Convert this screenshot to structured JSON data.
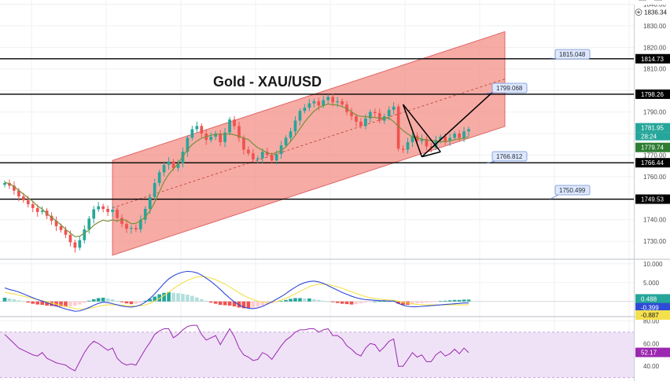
{
  "colors": {
    "up": "#26a69a",
    "down": "#ef5350",
    "channel_fill": "#f28b82",
    "ma": "#7a8f3a",
    "macd_line": "#2f4bd6",
    "signal_line": "#f4e04d",
    "rsi_line": "#9c27b0",
    "rsi_band": "#efe2f7",
    "level_line": "#000000"
  },
  "chart_data": [
    {
      "type": "candlestick",
      "title": "Gold - XAU/USD",
      "ylim": [
        1722,
        1842
      ],
      "y_ticks": [
        "1840.00",
        "1830.00",
        "1820.00",
        "1810.00",
        "1790.00",
        "1780.00",
        "1770.00",
        "1760.00",
        "1740.00",
        "1730.00"
      ],
      "ohlc_close": [
        1757.0,
        1755.8,
        1753.5,
        1750.8,
        1749.0,
        1747.2,
        1745.4,
        1743.6,
        1744.2,
        1741.8,
        1739.5,
        1737.0,
        1735.2,
        1733.0,
        1729.5,
        1727.0,
        1730.5,
        1735.5,
        1740.5,
        1744.8,
        1746.2,
        1745.0,
        1743.6,
        1744.6,
        1740.8,
        1738.0,
        1735.8,
        1736.2,
        1735.5,
        1740.0,
        1745.0,
        1750.5,
        1757.0,
        1762.0,
        1765.5,
        1767.0,
        1764.0,
        1766.2,
        1771.5,
        1778.0,
        1782.0,
        1783.5,
        1780.0,
        1777.0,
        1778.5,
        1780.0,
        1776.0,
        1780.5,
        1786.5,
        1783.5,
        1778.0,
        1772.5,
        1770.8,
        1768.0,
        1768.5,
        1771.5,
        1770.0,
        1767.5,
        1770.5,
        1774.5,
        1778.0,
        1781.0,
        1786.0,
        1790.5,
        1792.0,
        1794.0,
        1795.0,
        1793.0,
        1795.5,
        1797.0,
        1794.5,
        1795.0,
        1793.5,
        1790.0,
        1788.0,
        1785.5,
        1783.5,
        1787.0,
        1790.0,
        1789.5,
        1786.0,
        1788.0,
        1791.0,
        1792.5,
        1773.0,
        1772.5,
        1776.0,
        1779.0,
        1776.5,
        1777.5,
        1774.0,
        1773.5,
        1777.0,
        1778.5,
        1776.5,
        1778.0,
        1780.0,
        1778.0,
        1781.0,
        1782.0
      ],
      "moving_average": [
        1757.3,
        1756.7,
        1755.4,
        1753.6,
        1751.9,
        1750.1,
        1748.5,
        1746.4,
        1744.9,
        1742.8,
        1741.1,
        1739.4,
        1737.6,
        1735.5,
        1733.8,
        1732.1,
        1732.3,
        1733.8,
        1735.2,
        1737.4,
        1738.8,
        1739.8,
        1739.3,
        1739.9,
        1739.3,
        1740.2,
        1739.6,
        1738.1,
        1738.3,
        1739.5,
        1741.3,
        1744.0,
        1748.0,
        1752.9,
        1757.7,
        1761.1,
        1763.6,
        1766.1,
        1769.4,
        1772.5,
        1774.9,
        1776.5,
        1777.8,
        1778.6,
        1779.2,
        1779.7,
        1779.7,
        1779.6,
        1779.9,
        1779.4,
        1778.7,
        1777.9,
        1777.2,
        1775.2,
        1773.4,
        1772.3,
        1771.1,
        1770.4,
        1771.2,
        1772.2,
        1773.8,
        1776.3,
        1779.1,
        1782.2,
        1785.4,
        1788.0,
        1790.4,
        1792.0,
        1793.0,
        1793.7,
        1793.5,
        1793.2,
        1792.5,
        1791.6,
        1790.1,
        1788.6,
        1788.0,
        1787.8,
        1787.7,
        1787.4,
        1787.2,
        1787.1,
        1787.2,
        1785.5,
        1783.4,
        1781.4,
        1779.8,
        1778.4,
        1778.0,
        1777.4,
        1777.0,
        1776.7,
        1776.5,
        1776.2,
        1776.2,
        1776.6,
        1777.1,
        1777.5,
        1777.8,
        1778.5
      ],
      "channel": {
        "lower": [
          [
            23,
            1723.5
          ],
          [
            99,
            1780.5
          ]
        ],
        "upper": [
          [
            23,
            1767.5
          ],
          [
            99,
            1824.5
          ]
        ]
      },
      "horizontal_levels": [
        {
          "value": 1814.73,
          "label": "1814.73",
          "callout": "1815.048"
        },
        {
          "value": 1798.26,
          "label": "1798.26",
          "callout": "1799.068"
        },
        {
          "value": 1766.44,
          "label": "1766.44",
          "callout": "1766.812"
        },
        {
          "value": 1749.53,
          "label": "1749.53",
          "callout": "1750.499"
        }
      ],
      "current_price_tags": [
        {
          "value": 1781.95,
          "label": "1781.95",
          "color": "#26a69a"
        },
        {
          "value": 1779.74,
          "label": "1779.74",
          "color": "#2e7d32"
        }
      ],
      "countdown": "28:24",
      "top_price_tag": {
        "value": 1836.34,
        "label": "1836.34"
      },
      "pattern_lines": [
        [
          85,
          1793.5
        ],
        [
          93,
          1771.5
        ],
        [
          99,
          1799.0
        ]
      ],
      "pattern_line_2": [
        [
          89,
          1771.5
        ],
        [
          91,
          1771.5
        ]
      ],
      "pattern_line_3": [
        [
          85,
          1793.5
        ],
        [
          89,
          1769.2
        ],
        [
          91,
          1771.0
        ],
        [
          99,
          1799.0
        ]
      ],
      "pattern_anchor": {
        "start": [
          85,
          1793.5
        ],
        "mid_low_1": [
          89,
          1769.2
        ],
        "mid_low_2": [
          93,
          1771.5
        ],
        "end": [
          99,
          1799.0
        ]
      }
    },
    {
      "type": "macd",
      "ylim": [
        -3.8,
        11
      ],
      "y_ticks": [
        "10.000",
        "5.000"
      ],
      "tags": [
        {
          "value": 0.488,
          "label": "0.488",
          "color": "#26a69a"
        },
        {
          "value": -0.399,
          "label": "-0.399",
          "color": "#2f4bd6"
        },
        {
          "value": -0.887,
          "label": "-0.887",
          "color": "#f4e04d"
        }
      ],
      "histogram": [
        1.0,
        0.8,
        0.6,
        0.3,
        0.1,
        -0.3,
        -0.6,
        -0.8,
        -0.9,
        -1.1,
        -1.2,
        -1.3,
        -1.3,
        -1.4,
        -1.3,
        -1.1,
        -0.8,
        -0.4,
        0.2,
        0.6,
        0.9,
        1.0,
        0.8,
        0.6,
        0.2,
        -0.2,
        -0.5,
        -0.7,
        -0.6,
        -0.3,
        0.2,
        0.7,
        1.3,
        1.9,
        2.3,
        2.5,
        2.3,
        2.2,
        2.0,
        1.8,
        1.5,
        1.1,
        0.6,
        0.2,
        -0.3,
        -0.6,
        -0.9,
        -1.0,
        -1.1,
        -1.3,
        -1.6,
        -1.8,
        -1.8,
        -1.7,
        -1.4,
        -1.1,
        -0.8,
        -0.5,
        -0.2,
        0.1,
        0.4,
        0.7,
        0.9,
        0.9,
        0.8,
        0.8,
        0.6,
        0.4,
        0.2,
        0.0,
        -0.2,
        -0.4,
        -0.6,
        -0.7,
        -0.8,
        -0.7,
        -0.5,
        -0.3,
        -0.1,
        0.0,
        0.1,
        0.1,
        0.2,
        0.2,
        -0.6,
        -0.9,
        -0.9,
        -0.7,
        -0.5,
        -0.4,
        -0.3,
        -0.2,
        -0.1,
        0.1,
        0.2,
        0.3,
        0.4,
        0.4,
        0.5,
        0.5
      ],
      "macd_line": [
        3.6,
        3.2,
        2.9,
        2.5,
        2.0,
        1.5,
        1.0,
        0.5,
        0.1,
        -0.3,
        -0.8,
        -1.2,
        -1.6,
        -2.0,
        -2.3,
        -2.6,
        -2.5,
        -2.1,
        -1.6,
        -1.0,
        -0.5,
        -0.2,
        -0.3,
        -0.6,
        -0.9,
        -1.2,
        -1.4,
        -1.5,
        -1.3,
        -0.9,
        -0.2,
        0.8,
        2.0,
        3.4,
        4.8,
        6.0,
        6.8,
        7.4,
        7.8,
        8.0,
        7.9,
        7.6,
        7.0,
        6.2,
        5.3,
        4.3,
        3.2,
        2.0,
        0.9,
        -0.1,
        -0.9,
        -1.5,
        -1.8,
        -1.9,
        -1.7,
        -1.3,
        -0.7,
        -0.1,
        0.6,
        1.3,
        2.1,
        3.0,
        3.8,
        4.5,
        5.0,
        5.3,
        5.4,
        5.2,
        4.8,
        4.2,
        3.6,
        3.0,
        2.4,
        1.9,
        1.4,
        1.0,
        0.7,
        0.5,
        0.4,
        0.3,
        0.2,
        0.2,
        0.1,
        0.1,
        -0.5,
        -1.0,
        -1.3,
        -1.4,
        -1.4,
        -1.3,
        -1.2,
        -1.1,
        -1.0,
        -0.9,
        -0.8,
        -0.7,
        -0.6,
        -0.5,
        -0.4,
        -0.4
      ],
      "signal_line": [
        2.4,
        2.2,
        2.0,
        1.7,
        1.4,
        1.1,
        0.8,
        0.5,
        0.2,
        -0.1,
        -0.4,
        -0.7,
        -1.0,
        -1.3,
        -1.6,
        -1.9,
        -2.0,
        -2.0,
        -1.8,
        -1.6,
        -1.3,
        -1.0,
        -0.9,
        -0.9,
        -0.9,
        -1.0,
        -1.1,
        -1.2,
        -1.2,
        -1.1,
        -0.9,
        -0.5,
        0.1,
        0.8,
        1.6,
        2.5,
        3.4,
        4.2,
        5.0,
        5.6,
        6.1,
        6.5,
        6.6,
        6.5,
        6.2,
        5.8,
        5.2,
        4.6,
        3.9,
        3.1,
        2.3,
        1.6,
        1.0,
        0.5,
        0.1,
        -0.2,
        -0.3,
        -0.2,
        0.0,
        0.4,
        0.8,
        1.4,
        2.0,
        2.7,
        3.3,
        3.9,
        4.3,
        4.6,
        4.6,
        4.5,
        4.2,
        3.9,
        3.5,
        3.0,
        2.6,
        2.1,
        1.7,
        1.3,
        1.0,
        0.8,
        0.6,
        0.5,
        0.4,
        0.3,
        0.1,
        -0.2,
        -0.4,
        -0.6,
        -0.8,
        -0.9,
        -0.9,
        -0.9,
        -0.9,
        -0.9,
        -0.9,
        -0.9,
        -0.9,
        -0.9,
        -0.9,
        -0.9
      ]
    },
    {
      "type": "rsi",
      "ylim": [
        27,
        83
      ],
      "y_ticks": [
        "80.00",
        "60.00",
        "40.00"
      ],
      "band": [
        30,
        70
      ],
      "tags": [
        {
          "value": 52.17,
          "label": "52.17",
          "color": "#9c27b0"
        }
      ],
      "values": [
        68,
        64,
        60,
        56,
        54,
        52,
        50,
        49,
        52,
        47,
        45,
        43,
        42,
        41,
        38,
        36,
        44,
        52,
        58,
        62,
        60,
        57,
        54,
        56,
        47,
        43,
        41,
        42,
        41,
        48,
        55,
        61,
        68,
        71,
        73,
        73,
        65,
        68,
        72,
        75,
        76,
        76,
        68,
        63,
        65,
        67,
        59,
        66,
        73,
        66,
        56,
        50,
        48,
        45,
        46,
        52,
        50,
        46,
        52,
        58,
        63,
        66,
        70,
        72,
        72,
        73,
        73,
        70,
        72,
        73,
        67,
        67,
        64,
        58,
        55,
        51,
        49,
        56,
        60,
        59,
        53,
        57,
        62,
        64,
        40,
        40,
        46,
        52,
        48,
        50,
        44,
        44,
        50,
        53,
        49,
        51,
        55,
        51,
        56,
        52
      ]
    }
  ]
}
